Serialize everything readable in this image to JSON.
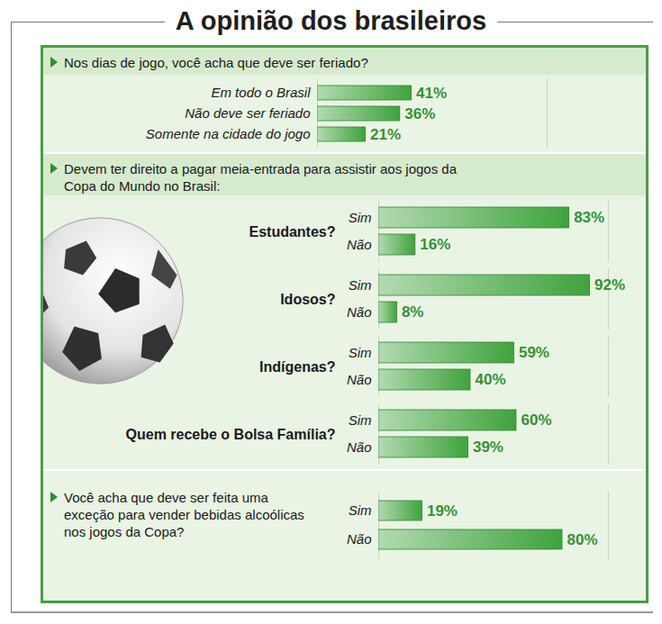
{
  "title": "A opinião dos brasileiros",
  "chart_data": [
    {
      "type": "bar",
      "orientation": "horizontal",
      "title": "Nos dias de jogo, você acha que deve ser feriado?",
      "categories": [
        "Em todo o Brasil",
        "Não deve ser feriado",
        "Somente na cidade do jogo"
      ],
      "values": [
        41,
        36,
        21
      ],
      "value_labels": [
        "41%",
        "36%",
        "21%"
      ],
      "color": "#3fa33c",
      "xlim": [
        0,
        100
      ],
      "data_labels": true,
      "tick_labels": "y"
    },
    {
      "type": "bar",
      "orientation": "horizontal",
      "title": "Devem ter direito a pagar meia-entrada para assistir aos jogos da Copa do Mundo no Brasil:",
      "categories": [
        "Estudantes?",
        "Idosos?",
        "Indígenas?",
        "Quem recebe o Bolsa Família?"
      ],
      "series": [
        {
          "name": "Sim",
          "color": "#3fa33c",
          "values": [
            83,
            92,
            59,
            60
          ],
          "value_labels": [
            "83%",
            "92%",
            "59%",
            "60%"
          ]
        },
        {
          "name": "Não",
          "color": "#3fa33c",
          "values": [
            16,
            8,
            40,
            39
          ],
          "value_labels": [
            "16%",
            "8%",
            "40%",
            "39%"
          ]
        }
      ],
      "xlim": [
        0,
        100
      ],
      "data_labels": true,
      "tick_labels": "y"
    },
    {
      "type": "bar",
      "orientation": "horizontal",
      "title": "Você acha que deve ser feita uma exceção para vender bebidas alcoólicas nos jogos da Copa?",
      "categories": [
        "Sim",
        "Não"
      ],
      "values": [
        19,
        80
      ],
      "value_labels": [
        "19%",
        "80%"
      ],
      "color": "#3fa33c",
      "xlim": [
        0,
        100
      ],
      "data_labels": true,
      "tick_labels": "y"
    }
  ]
}
